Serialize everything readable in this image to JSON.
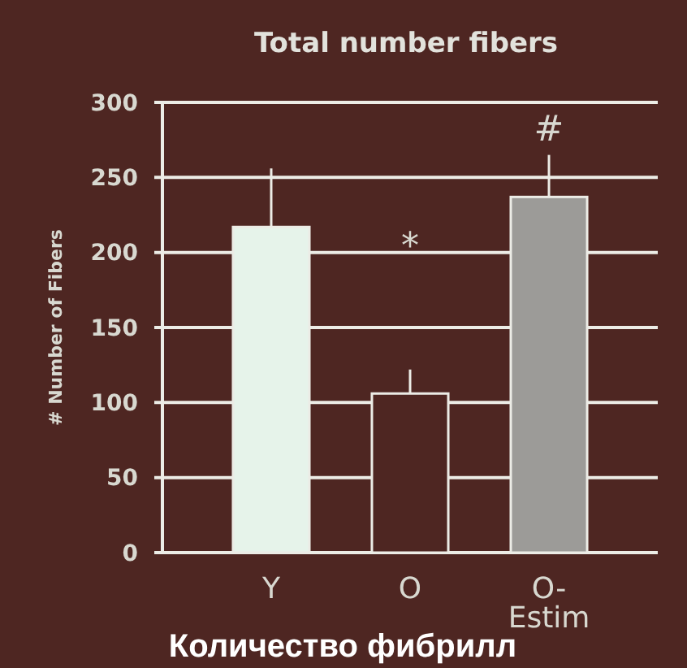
{
  "chart_data": {
    "type": "bar",
    "title": "Total number fibers",
    "ylabel": "# Number of Fibers",
    "categories": [
      "Y",
      "O",
      "O-Estim"
    ],
    "values": [
      217,
      106,
      237
    ],
    "colors": [
      "#e6f3ea",
      "#4e2622",
      "#9c9b98"
    ],
    "errors": [
      [
        217,
        256
      ],
      [
        106,
        122
      ],
      [
        237,
        265
      ]
    ],
    "ylim": [
      0,
      300
    ],
    "yticks": [
      0,
      50,
      100,
      150,
      200,
      250,
      300
    ],
    "grid": "y",
    "annotations": [
      "*",
      "#",
      "Количество фибрилл"
    ]
  }
}
